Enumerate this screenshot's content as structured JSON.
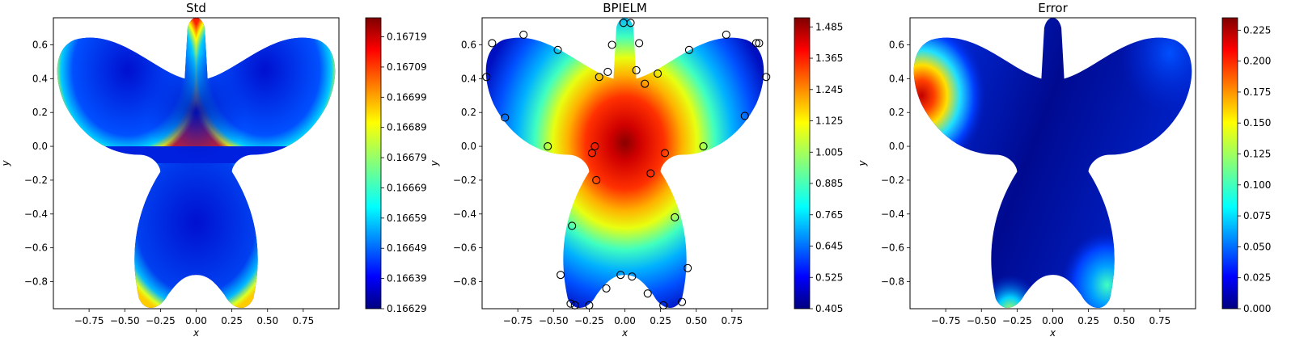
{
  "chart_data": [
    {
      "type": "heatmap",
      "title": "Std",
      "xlabel": "x",
      "ylabel": "y",
      "xlim": [
        -1.0,
        1.0
      ],
      "ylim": [
        -0.96,
        0.76
      ],
      "xticks": [
        "−0.75",
        "−0.50",
        "−0.25",
        "0.00",
        "0.25",
        "0.50",
        "0.75"
      ],
      "xtick_values": [
        -0.75,
        -0.5,
        -0.25,
        0.0,
        0.25,
        0.5,
        0.75
      ],
      "yticks": [
        "−0.8",
        "−0.6",
        "−0.4",
        "−0.2",
        "0.0",
        "0.2",
        "0.4",
        "0.6"
      ],
      "ytick_values": [
        -0.8,
        -0.6,
        -0.4,
        -0.2,
        0.0,
        0.2,
        0.4,
        0.6
      ],
      "colorbar": {
        "min": 0.16629,
        "max": 0.167253,
        "ticks": [
          "0.16629",
          "0.16639",
          "0.16649",
          "0.16659",
          "0.16669",
          "0.16679",
          "0.16689",
          "0.16699",
          "0.16709",
          "0.16719"
        ],
        "tick_values": [
          0.16629,
          0.16639,
          0.16649,
          0.16659,
          0.16669,
          0.16679,
          0.16689,
          0.16699,
          0.16709,
          0.16719
        ]
      }
    },
    {
      "type": "heatmap",
      "title": "BPIELM",
      "xlabel": "x",
      "ylabel": "y",
      "xlim": [
        -1.0,
        1.0
      ],
      "ylim": [
        -0.96,
        0.76
      ],
      "xticks": [
        "−0.75",
        "−0.50",
        "−0.25",
        "0.00",
        "0.25",
        "0.50",
        "0.75"
      ],
      "xtick_values": [
        -0.75,
        -0.5,
        -0.25,
        0.0,
        0.25,
        0.5,
        0.75
      ],
      "yticks": [
        "−0.8",
        "−0.6",
        "−0.4",
        "−0.2",
        "0.0",
        "0.2",
        "0.4",
        "0.6"
      ],
      "ytick_values": [
        -0.8,
        -0.6,
        -0.4,
        -0.2,
        0.0,
        0.2,
        0.4,
        0.6
      ],
      "colorbar": {
        "min": 0.405,
        "max": 1.52,
        "ticks": [
          "0.405",
          "0.525",
          "0.645",
          "0.765",
          "0.885",
          "1.005",
          "1.125",
          "1.245",
          "1.365",
          "1.485"
        ],
        "tick_values": [
          0.405,
          0.525,
          0.645,
          0.765,
          0.885,
          1.005,
          1.125,
          1.245,
          1.365,
          1.485
        ]
      },
      "markers": {
        "x": [
          -0.01,
          0.04,
          -0.97,
          -0.93,
          -0.71,
          -0.47,
          -0.84,
          -0.54,
          -0.35,
          -0.2,
          -0.23,
          -0.21,
          -0.37,
          -0.45,
          -0.38,
          -0.25,
          -0.13,
          -0.03,
          0.05,
          0.16,
          0.27,
          0.4,
          0.44,
          0.35,
          0.18,
          0.28,
          0.55,
          0.84,
          0.94,
          0.99,
          0.92,
          0.71,
          0.45,
          0.23,
          0.14,
          0.08,
          0.1,
          -0.09,
          -0.12,
          -0.18
        ],
        "y": [
          0.73,
          0.73,
          0.41,
          0.61,
          0.66,
          0.57,
          0.17,
          0.0,
          -0.94,
          -0.2,
          -0.04,
          0.0,
          -0.47,
          -0.76,
          -0.93,
          -0.94,
          -0.84,
          -0.76,
          -0.77,
          -0.87,
          -0.94,
          -0.92,
          -0.72,
          -0.42,
          -0.16,
          -0.04,
          0.0,
          0.18,
          0.61,
          0.41,
          0.61,
          0.66,
          0.57,
          0.43,
          0.37,
          0.45,
          0.61,
          0.6,
          0.44,
          0.41
        ]
      }
    },
    {
      "type": "heatmap",
      "title": "Error",
      "xlabel": "x",
      "ylabel": "y",
      "xlim": [
        -1.0,
        1.0
      ],
      "ylim": [
        -0.96,
        0.76
      ],
      "xticks": [
        "−0.75",
        "−0.50",
        "−0.25",
        "0.00",
        "0.25",
        "0.50",
        "0.75"
      ],
      "xtick_values": [
        -0.75,
        -0.5,
        -0.25,
        0.0,
        0.25,
        0.5,
        0.75
      ],
      "yticks": [
        "−0.8",
        "−0.6",
        "−0.4",
        "−0.2",
        "0.0",
        "0.2",
        "0.4",
        "0.6"
      ],
      "ytick_values": [
        -0.8,
        -0.6,
        -0.4,
        -0.2,
        0.0,
        0.2,
        0.4,
        0.6
      ],
      "colorbar": {
        "min": 0.0,
        "max": 0.235,
        "ticks": [
          "0.000",
          "0.025",
          "0.050",
          "0.075",
          "0.100",
          "0.125",
          "0.150",
          "0.175",
          "0.200",
          "0.225"
        ],
        "tick_values": [
          0.0,
          0.025,
          0.05,
          0.075,
          0.1,
          0.125,
          0.15,
          0.175,
          0.2,
          0.225
        ]
      }
    }
  ],
  "colormap": [
    "#00007f",
    "#0000ff",
    "#00ffff",
    "#ffff00",
    "#ff0000",
    "#7f0000"
  ]
}
